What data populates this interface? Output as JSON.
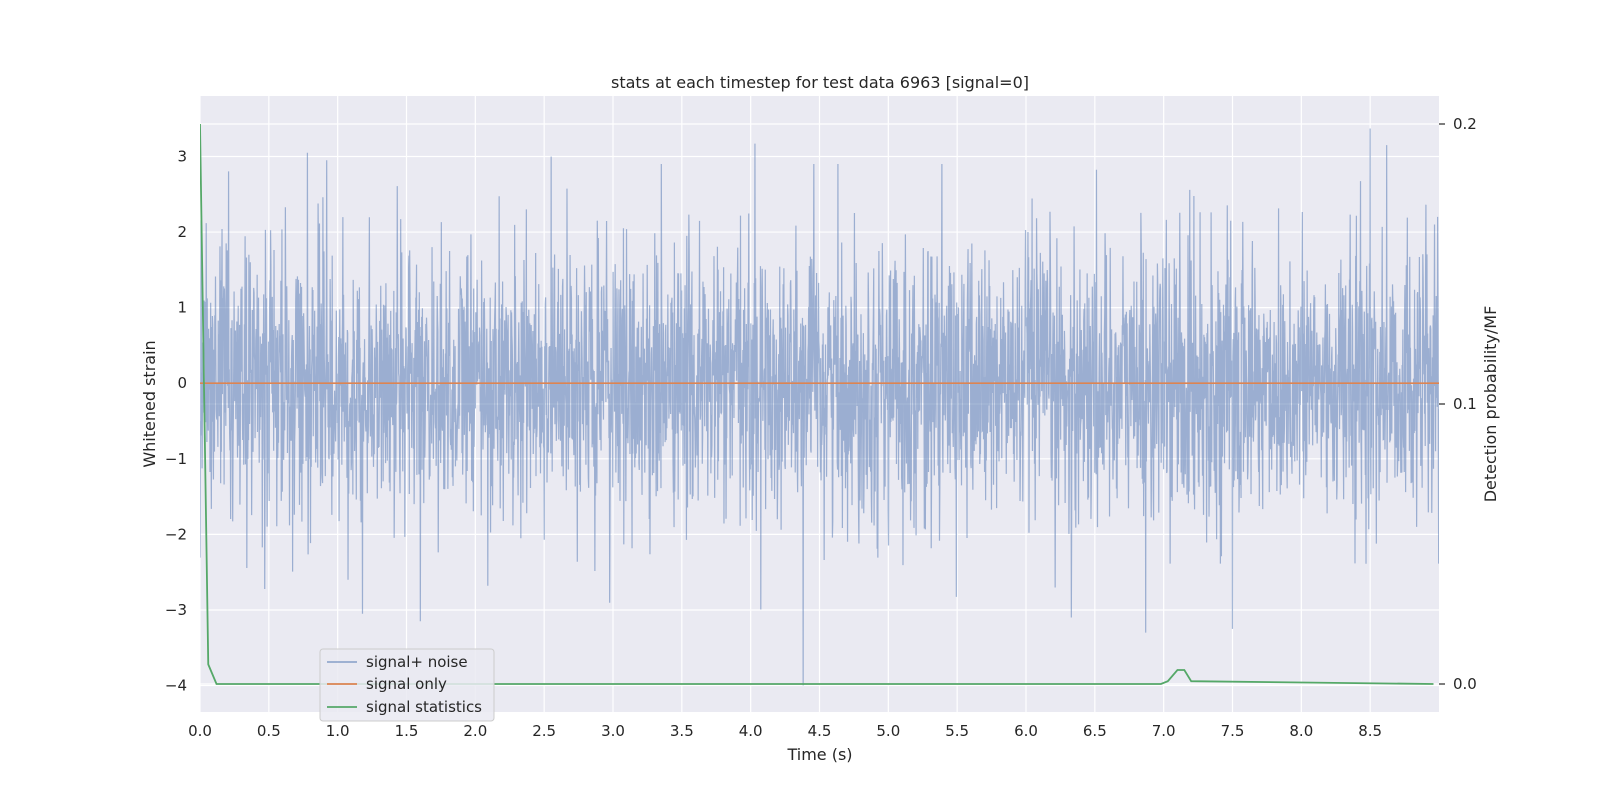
{
  "chart_data": {
    "type": "line",
    "title": "stats at each timestep for test data 6963 [signal=0]",
    "xlabel": "Time (s)",
    "ylabel": "Whitened strain",
    "ylabel_right": "Detection probability/MF",
    "xlim": [
      0.0,
      9.0
    ],
    "ylim": [
      -4.35,
      3.8
    ],
    "ylim_right": [
      -0.01,
      0.21
    ],
    "x_ticks": [
      "0.0",
      "0.5",
      "1.0",
      "1.5",
      "2.0",
      "2.5",
      "3.0",
      "3.5",
      "4.0",
      "4.5",
      "5.0",
      "5.5",
      "6.0",
      "6.5",
      "7.0",
      "7.5",
      "8.0",
      "8.5"
    ],
    "y_ticks": [
      "−4",
      "−3",
      "−2",
      "−1",
      "0",
      "1",
      "2",
      "3"
    ],
    "y_ticks_right": [
      "0.0",
      "0.1",
      "0.2"
    ],
    "grid": true,
    "legend_position": "lower-left",
    "colors": {
      "background": "#eaeaf2",
      "grid": "#ffffff",
      "noise": "#4c72b0",
      "signal": "#dd8452",
      "stats": "#55a868"
    },
    "series": [
      {
        "name": "signal+ noise",
        "axis": "left",
        "note": "whitened strain noise, approximately Gaussian, sd ~0.9, range about -4 to 3.4",
        "extremes": [
          {
            "x": 0.78,
            "y": 3.05
          },
          {
            "x": 0.92,
            "y": 2.95
          },
          {
            "x": 2.55,
            "y": 3.0
          },
          {
            "x": 4.03,
            "y": 3.17
          },
          {
            "x": 8.5,
            "y": 3.37
          },
          {
            "x": 8.62,
            "y": 3.15
          },
          {
            "x": 4.38,
            "y": -4.0
          },
          {
            "x": 1.6,
            "y": -3.15
          },
          {
            "x": 6.87,
            "y": -3.3
          },
          {
            "x": 6.33,
            "y": -3.1
          },
          {
            "x": 1.18,
            "y": -3.05
          },
          {
            "x": 7.5,
            "y": -3.25
          }
        ]
      },
      {
        "name": "signal only",
        "axis": "left",
        "x": [
          0.0,
          9.0
        ],
        "y": [
          0.0,
          0.0
        ]
      },
      {
        "name": "signal statistics",
        "axis": "right",
        "x": [
          0.0,
          0.06,
          0.12,
          6.98,
          7.03,
          7.1,
          7.15,
          7.2,
          8.96
        ],
        "y": [
          0.2,
          0.007,
          0.0,
          0.0,
          0.001,
          0.005,
          0.005,
          0.001,
          0.0
        ]
      }
    ]
  }
}
